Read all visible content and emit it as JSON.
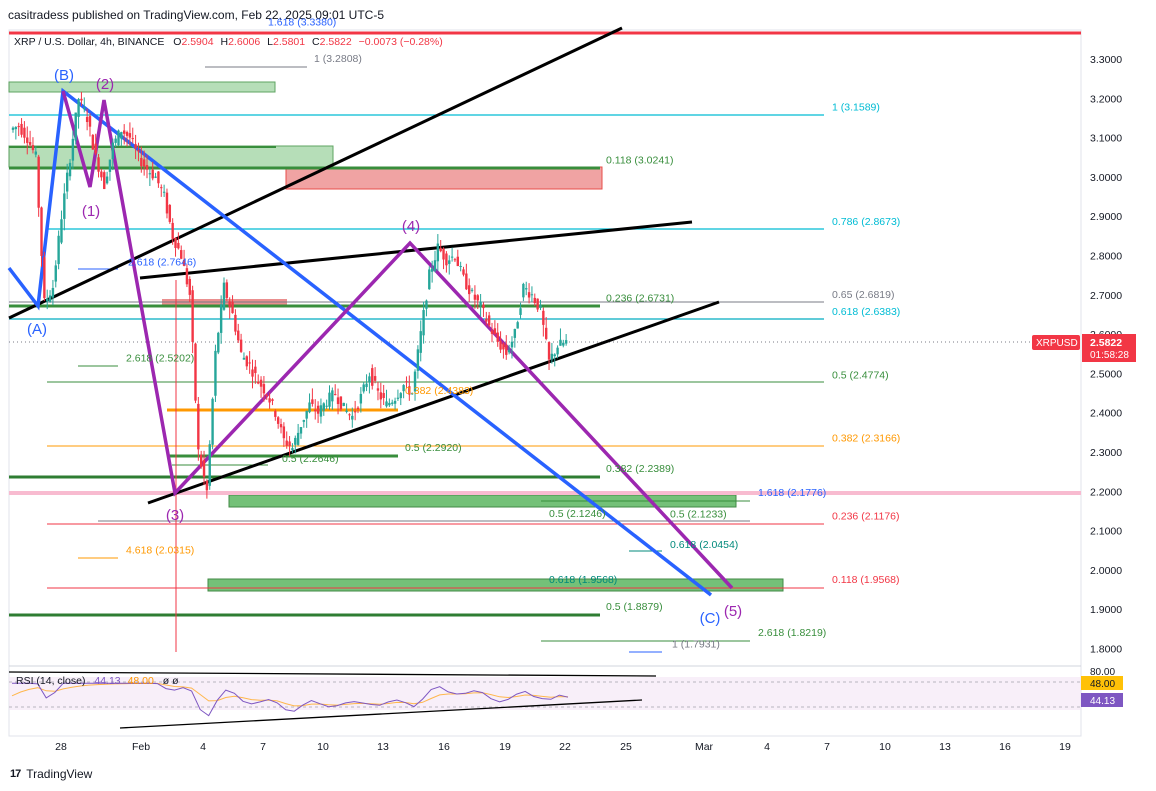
{
  "header": {
    "published": "casitradess published on TradingView.com, Feb 22, 2025 09:01 UTC-5"
  },
  "legend": {
    "symbol": "XRP / U.S. Dollar, 4h, BINANCE",
    "o_label": "O",
    "o_value": "2.5904",
    "h_label": "H",
    "h_value": "2.6006",
    "l_label": "L",
    "l_value": "2.5801",
    "c_label": "C",
    "c_value": "2.5822",
    "change": "−0.0073 (−0.28%)"
  },
  "price_tag": {
    "ticker": "XRPUSD",
    "price": "2.5822",
    "countdown": "01:58:28"
  },
  "rsi": {
    "legend": "RSI (14, close)",
    "value1": "44.13",
    "value2": "48.00",
    "extra": "ø  ø",
    "axis_top": "80.00",
    "badge_ma": "48.00",
    "badge_rsi": "44.13"
  },
  "colors": {
    "up": "#26a69a",
    "bluewave": "#2962ff",
    "purplewave": "#9c27b0",
    "red": "#f23645",
    "green": "#388e3c",
    "teal": "#00bcd4",
    "orange": "#ff9800"
  },
  "footer": {
    "brand": "TradingView",
    "logo": "17"
  },
  "chart_data": {
    "type": "candlestick",
    "title": "XRP / U.S. Dollar, 4h, BINANCE",
    "y_axis": {
      "min": 1.75,
      "max": 3.38,
      "ticks": [
        "3.3000",
        "3.2000",
        "3.1000",
        "3.0000",
        "2.9000",
        "2.8000",
        "2.7000",
        "2.6000",
        "2.5000",
        "2.4000",
        "2.3000",
        "2.2000",
        "2.1000",
        "2.0000",
        "1.9000",
        "1.8000"
      ]
    },
    "x_axis": {
      "ticks": [
        "28",
        "Feb",
        "4",
        "7",
        "10",
        "13",
        "16",
        "19",
        "22",
        "25",
        "Mar",
        "4",
        "7",
        "10",
        "13",
        "16",
        "19"
      ]
    },
    "price_path": [
      [
        0,
        3.12
      ],
      [
        1,
        3.13
      ],
      [
        2,
        3.1
      ],
      [
        3,
        3.05
      ],
      [
        4,
        2.68
      ],
      [
        5,
        2.72
      ],
      [
        6,
        2.9
      ],
      [
        7,
        3.05
      ],
      [
        8,
        3.2
      ],
      [
        9,
        3.15
      ],
      [
        10,
        3.05
      ],
      [
        11,
        2.98
      ],
      [
        12,
        3.08
      ],
      [
        13,
        3.12
      ],
      [
        14,
        3.1
      ],
      [
        15,
        3.05
      ],
      [
        16,
        3.02
      ],
      [
        17,
        3.0
      ],
      [
        18,
        2.95
      ],
      [
        19,
        2.85
      ],
      [
        20,
        2.8
      ],
      [
        21,
        2.7
      ],
      [
        22,
        2.3
      ],
      [
        23,
        2.2
      ],
      [
        24,
        2.55
      ],
      [
        25,
        2.72
      ],
      [
        26,
        2.65
      ],
      [
        27,
        2.55
      ],
      [
        28,
        2.52
      ],
      [
        29,
        2.48
      ],
      [
        30,
        2.45
      ],
      [
        31,
        2.4
      ],
      [
        32,
        2.33
      ],
      [
        33,
        2.31
      ],
      [
        34,
        2.37
      ],
      [
        35,
        2.42
      ],
      [
        36,
        2.4
      ],
      [
        37,
        2.43
      ],
      [
        38,
        2.45
      ],
      [
        39,
        2.41
      ],
      [
        40,
        2.39
      ],
      [
        41,
        2.44
      ],
      [
        42,
        2.5
      ],
      [
        43,
        2.45
      ],
      [
        44,
        2.42
      ],
      [
        45,
        2.44
      ],
      [
        46,
        2.47
      ],
      [
        47,
        2.45
      ],
      [
        48,
        2.6
      ],
      [
        49,
        2.75
      ],
      [
        50,
        2.82
      ],
      [
        51,
        2.79
      ],
      [
        52,
        2.8
      ],
      [
        53,
        2.74
      ],
      [
        54,
        2.7
      ],
      [
        55,
        2.67
      ],
      [
        56,
        2.62
      ],
      [
        57,
        2.58
      ],
      [
        58,
        2.55
      ],
      [
        59,
        2.6
      ],
      [
        60,
        2.72
      ],
      [
        61,
        2.7
      ],
      [
        62,
        2.66
      ],
      [
        63,
        2.53
      ],
      [
        64,
        2.57
      ],
      [
        65,
        2.58
      ]
    ],
    "fib_labels": [
      {
        "text": "1.618 (3.3380)",
        "price": 3.375,
        "color": "#2962ff"
      },
      {
        "text": "1 (3.2808)",
        "price": 3.282,
        "color": "#787b86"
      },
      {
        "text": "1 (3.1589)",
        "price": 3.159,
        "color": "#00bcd4"
      },
      {
        "text": "0.118 (3.0241)",
        "price": 3.024,
        "color": "#388e3c"
      },
      {
        "text": "0.786 (2.8673)",
        "price": 2.867,
        "color": "#00bcd4"
      },
      {
        "text": "2.618 (2.7646)",
        "price": 2.765,
        "color": "#2962ff"
      },
      {
        "text": "0.65 (2.6819)",
        "price": 2.682,
        "color": "#787b86"
      },
      {
        "text": "0.236 (2.6731)",
        "price": 2.673,
        "color": "#388e3c"
      },
      {
        "text": "0.618 (2.6383)",
        "price": 2.638,
        "color": "#00bcd4"
      },
      {
        "text": "2.618 (2.5202)",
        "price": 2.52,
        "color": "#388e3c"
      },
      {
        "text": "0.5 (2.4774)",
        "price": 2.477,
        "color": "#388e3c"
      },
      {
        "text": "0.382 (2.4383)",
        "price": 2.438,
        "color": "#ff9800"
      },
      {
        "text": "0.382 (2.3166)",
        "price": 2.317,
        "color": "#ff9800"
      },
      {
        "text": "0.5 (2.2920)",
        "price": 2.292,
        "color": "#388e3c"
      },
      {
        "text": "0.5 (2.2646)",
        "price": 2.265,
        "color": "#388e3c"
      },
      {
        "text": "0.382 (2.2389)",
        "price": 2.239,
        "color": "#388e3c"
      },
      {
        "text": "1.618 (2.1776)",
        "price": 2.178,
        "color": "#2962ff"
      },
      {
        "text": "0.5 (2.1246)",
        "price": 2.125,
        "color": "#388e3c"
      },
      {
        "text": "0.5 (2.1233)",
        "price": 2.123,
        "color": "#388e3c"
      },
      {
        "text": "0.236 (2.1176)",
        "price": 2.118,
        "color": "#f23645"
      },
      {
        "text": "0.618 (2.0454)",
        "price": 2.045,
        "color": "#00897b"
      },
      {
        "text": "4.618 (2.0315)",
        "price": 2.032,
        "color": "#ff9800"
      },
      {
        "text": "0.618 (1.9568)",
        "price": 1.957,
        "color": "#00897b"
      },
      {
        "text": "0.118 (1.9568)",
        "price": 1.957,
        "color": "#f23645"
      },
      {
        "text": "0.5 (1.8879)",
        "price": 1.888,
        "color": "#388e3c"
      },
      {
        "text": "2.618 (1.8219)",
        "price": 1.822,
        "color": "#388e3c"
      },
      {
        "text": "1 (1.7931)",
        "price": 1.793,
        "color": "#787b86"
      }
    ],
    "wave_labels": [
      {
        "text": "(B)",
        "color": "#2962ff"
      },
      {
        "text": "(2)",
        "color": "#9c27b0"
      },
      {
        "text": "(1)",
        "color": "#9c27b0"
      },
      {
        "text": "(A)",
        "color": "#2962ff"
      },
      {
        "text": "(4)",
        "color": "#9c27b0"
      },
      {
        "text": "(3)",
        "color": "#9c27b0"
      },
      {
        "text": "(C)",
        "color": "#2962ff"
      },
      {
        "text": "(5)",
        "color": "#9c27b0"
      }
    ]
  }
}
